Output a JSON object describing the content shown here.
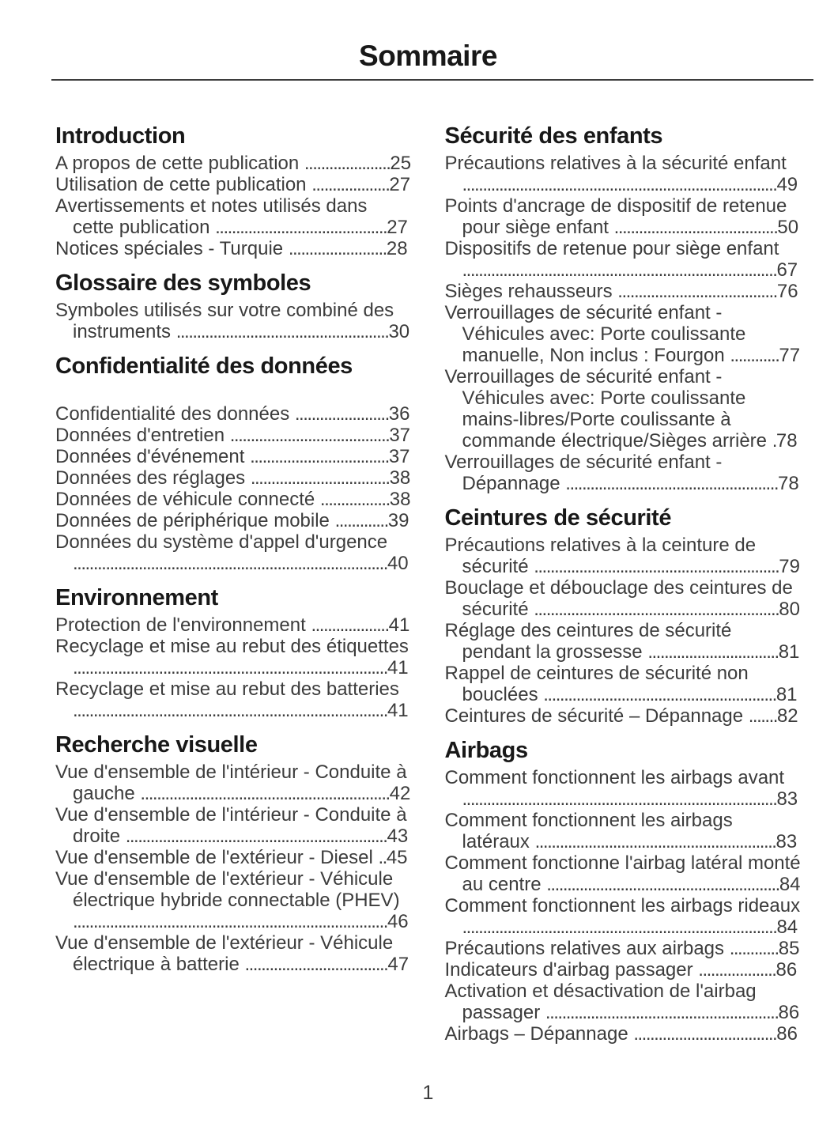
{
  "page": {
    "title": "Sommaire",
    "page_number": "1"
  },
  "colors": {
    "background": "#ffffff",
    "heading_text": "#181818",
    "entry_text": "#3c3c3c",
    "rule": "#3d3d3d"
  },
  "columns": {
    "left": [
      {
        "heading": "Introduction",
        "entries": [
          {
            "title": "A propos de cette publication",
            "page": "25"
          },
          {
            "title": "Utilisation de cette publication",
            "page": "27"
          },
          {
            "title": "Avertissements et notes utilisés dans cette publication",
            "page": "27"
          },
          {
            "title": "Notices spéciales - Turquie",
            "page": "28"
          }
        ]
      },
      {
        "heading": "Glossaire des symboles",
        "entries": [
          {
            "title": "Symboles utilisés sur votre combiné des instruments",
            "page": "30"
          }
        ]
      },
      {
        "heading": "Confidentialité des données",
        "gap_before_entries": true,
        "entries": [
          {
            "title": "Confidentialité des données",
            "page": "36"
          },
          {
            "title": "Données d'entretien",
            "page": "37"
          },
          {
            "title": "Données d'événement",
            "page": "37"
          },
          {
            "title": "Données des réglages",
            "page": "38"
          },
          {
            "title": "Données de véhicule connecté",
            "page": "38"
          },
          {
            "title": "Données de périphérique mobile",
            "page": "39"
          },
          {
            "title": "Données du système d'appel d'urgence",
            "page": "40"
          }
        ]
      },
      {
        "heading": "Environnement",
        "entries": [
          {
            "title": "Protection de l'environnement",
            "page": "41"
          },
          {
            "title": "Recyclage et mise au rebut des étiquettes",
            "page": "41"
          },
          {
            "title": "Recyclage et mise au rebut des batteries",
            "page": "41"
          }
        ]
      },
      {
        "heading": "Recherche visuelle",
        "entries": [
          {
            "title": "Vue d'ensemble de l'intérieur - Conduite à gauche",
            "page": "42"
          },
          {
            "title": "Vue d'ensemble de l'intérieur - Conduite à droite",
            "page": "43"
          },
          {
            "title": "Vue d'ensemble de l'extérieur - Diesel",
            "page": "45"
          },
          {
            "title": "Vue d'ensemble de l'extérieur - Véhicule électrique hybride connectable (PHEV)",
            "page": "46"
          },
          {
            "title": "Vue d'ensemble de l'extérieur - Véhicule électrique à batterie",
            "page": "47"
          }
        ]
      }
    ],
    "right": [
      {
        "heading": "Sécurité des enfants",
        "entries": [
          {
            "title": "Précautions relatives à la sécurité enfant",
            "page": "49"
          },
          {
            "title": "Points d'ancrage de dispositif de retenue pour siège enfant",
            "page": "50"
          },
          {
            "title": "Dispositifs de retenue pour siège enfant",
            "page": "67"
          },
          {
            "title": "Sièges rehausseurs",
            "page": "76"
          },
          {
            "title": "Verrouillages de sécurité enfant - Véhicules avec: Porte coulissante manuelle, Non inclus : Fourgon",
            "page": "77"
          },
          {
            "title": "Verrouillages de sécurité enfant - Véhicules avec: Porte coulissante mains-libres/Porte coulissante à commande électrique/Sièges arrière",
            "page": "78"
          },
          {
            "title": "Verrouillages de sécurité enfant - Dépannage",
            "page": "78"
          }
        ]
      },
      {
        "heading": "Ceintures de sécurité",
        "entries": [
          {
            "title": "Précautions relatives à la ceinture de sécurité",
            "page": "79"
          },
          {
            "title": "Bouclage et débouclage des ceintures de sécurité",
            "page": "80"
          },
          {
            "title": "Réglage des ceintures de sécurité pendant la grossesse",
            "page": "81"
          },
          {
            "title": "Rappel de ceintures de sécurité non bouclées",
            "page": "81"
          },
          {
            "title": "Ceintures de sécurité – Dépannage",
            "page": "82"
          }
        ]
      },
      {
        "heading": "Airbags",
        "entries": [
          {
            "title": "Comment fonctionnent les airbags avant",
            "page": "83"
          },
          {
            "title": "Comment fonctionnent les airbags latéraux",
            "page": "83"
          },
          {
            "title": "Comment fonctionne l'airbag latéral monté au centre",
            "page": "84"
          },
          {
            "title": "Comment fonctionnent les airbags rideaux",
            "page": "84"
          },
          {
            "title": "Précautions relatives aux airbags",
            "page": "85"
          },
          {
            "title": "Indicateurs d'airbag passager",
            "page": "86"
          },
          {
            "title": "Activation et désactivation de l'airbag passager",
            "page": "86"
          },
          {
            "title": "Airbags – Dépannage",
            "page": "86"
          }
        ]
      }
    ]
  }
}
